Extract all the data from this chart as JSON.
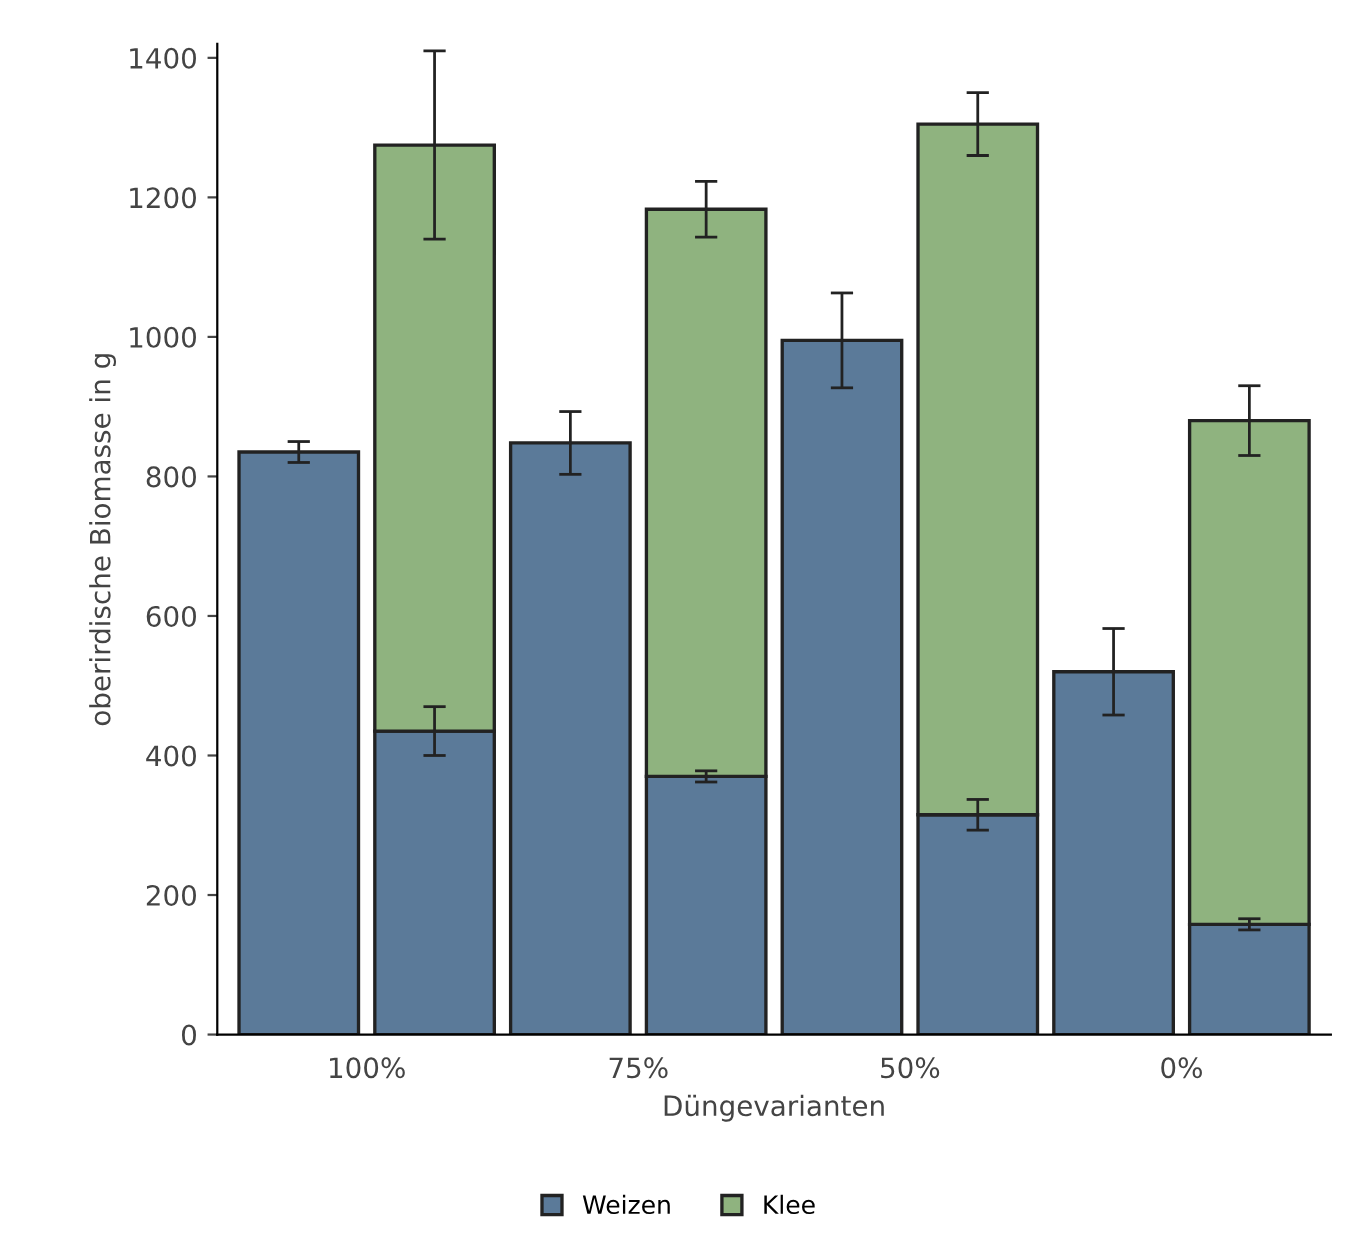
{
  "chart_data": {
    "type": "bar",
    "stacked": true,
    "xlabel": "Düngevarianten",
    "ylabel": "oberirdische Biomasse in g",
    "categories": [
      "100%",
      null,
      "75%",
      null,
      "50%",
      null,
      "0%",
      null
    ],
    "series": [
      {
        "name": "Weizen",
        "color": "#5b7a99",
        "values": [
          835,
          435,
          848,
          370,
          995,
          315,
          520,
          158
        ],
        "errors": [
          15,
          35,
          45,
          8,
          68,
          22,
          62,
          8
        ]
      },
      {
        "name": "Klee",
        "color": "#8fb37f",
        "values": [
          null,
          840,
          null,
          813,
          null,
          990,
          null,
          722
        ],
        "errors": [
          null,
          135,
          null,
          40,
          null,
          45,
          null,
          50
        ]
      }
    ],
    "ylim": [
      0,
      1420
    ],
    "yticks": [
      0,
      200,
      400,
      600,
      800,
      1000,
      1200,
      1400
    ],
    "grid": false,
    "legend": "bottom"
  }
}
